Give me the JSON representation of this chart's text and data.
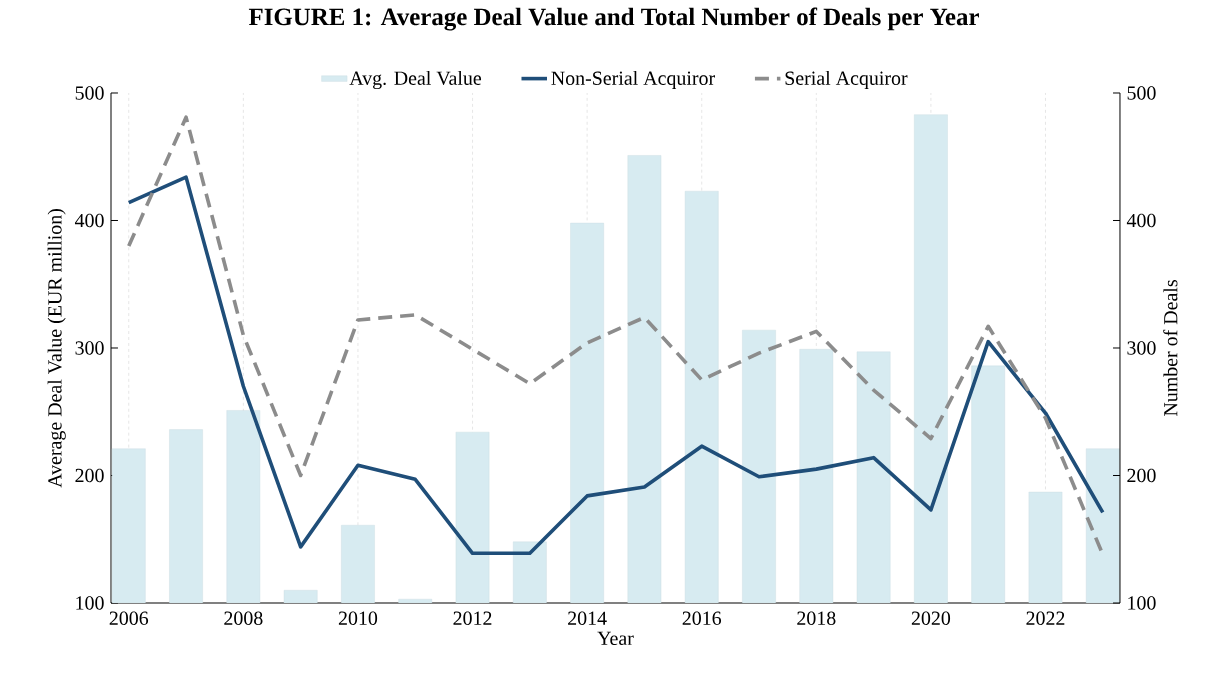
{
  "chart_data": {
    "type": "line",
    "title": "FIGURE 1: Average Deal Value and Total Number of Deals per Year",
    "xlabel": "Year",
    "ylabel": "Average Deal Value (EUR million)",
    "y2label": "Number of Deals",
    "x": [
      2006,
      2007,
      2008,
      2009,
      2010,
      2011,
      2012,
      2013,
      2014,
      2015,
      2016,
      2017,
      2018,
      2019,
      2020,
      2021,
      2022,
      2023
    ],
    "series": [
      {
        "name": "Avg. Deal Value",
        "type": "bar",
        "color": "#d7ebf1",
        "values": [
          221,
          236,
          251,
          110,
          161,
          103,
          234,
          148,
          398,
          451,
          423,
          314,
          299,
          297,
          483,
          286,
          187,
          221
        ]
      },
      {
        "name": "Non-Serial Acquiror",
        "axis": "y2",
        "color": "#1f4e79",
        "line_style": "solid",
        "values": [
          414,
          434,
          270,
          144,
          208,
          197,
          139,
          139,
          184,
          191,
          223,
          199,
          205,
          214,
          173,
          305,
          249,
          171
        ]
      },
      {
        "name": "Serial Acquiror",
        "axis": "y2",
        "color": "#8c8c8c",
        "line_style": "dashed",
        "values": [
          380,
          481,
          310,
          200,
          322,
          326,
          299,
          272,
          304,
          324,
          275,
          296,
          313,
          267,
          229,
          317,
          245,
          138
        ]
      }
    ],
    "xlim": [
      2005.69,
      2023.3
    ],
    "xticks": [
      2006,
      2008,
      2010,
      2012,
      2014,
      2016,
      2018,
      2020,
      2022
    ],
    "ylim": [
      100,
      500
    ],
    "yticks": [
      100,
      200,
      300,
      400,
      500
    ],
    "y2lim": [
      100,
      500
    ],
    "y2ticks": [
      100,
      200,
      300,
      400,
      500
    ],
    "grid": "x",
    "legend": "top"
  }
}
